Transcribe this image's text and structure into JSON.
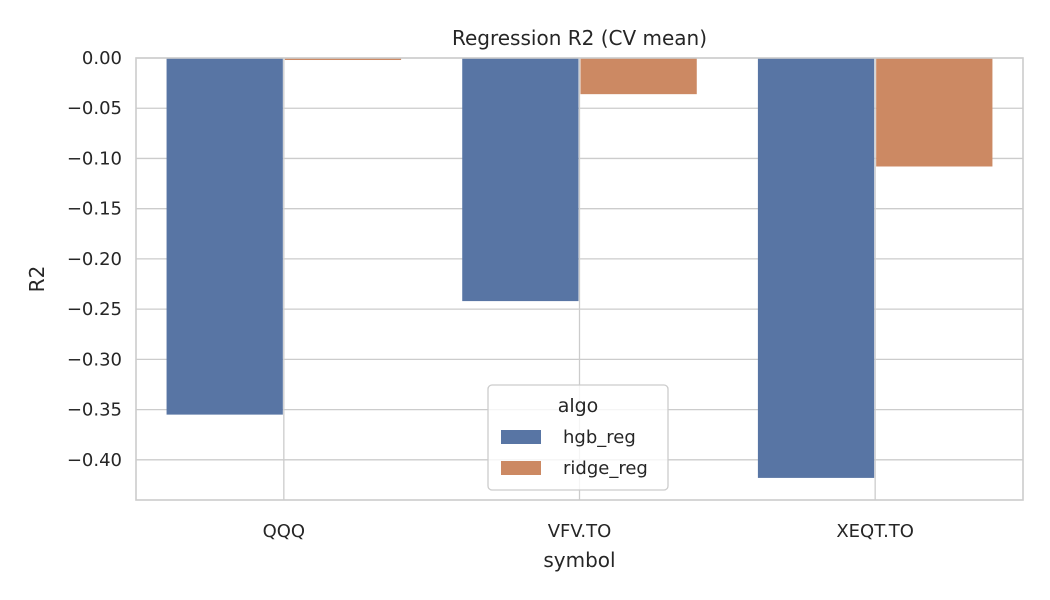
{
  "chart_data": {
    "type": "bar",
    "title": "Regression R2 (CV mean)",
    "xlabel": "symbol",
    "ylabel": "R2",
    "categories": [
      "QQQ",
      "VFV.TO",
      "XEQT.TO"
    ],
    "series": [
      {
        "name": "hgb_reg",
        "color": "#5875a4",
        "values": [
          -0.355,
          -0.242,
          -0.418
        ]
      },
      {
        "name": "ridge_reg",
        "color": "#cc8963",
        "values": [
          -0.002,
          -0.036,
          -0.108
        ]
      }
    ],
    "ylim": [
      -0.44,
      0.0
    ],
    "yticks": [
      0.0,
      -0.05,
      -0.1,
      -0.15,
      -0.2,
      -0.25,
      -0.3,
      -0.35,
      -0.4
    ],
    "ytick_labels": [
      "0.00",
      "−0.05",
      "−0.10",
      "−0.15",
      "−0.20",
      "−0.25",
      "−0.30",
      "−0.35",
      "−0.40"
    ],
    "grid": true,
    "legend": {
      "title": "algo",
      "placement": "lower-center",
      "entries": [
        "hgb_reg",
        "ridge_reg"
      ]
    }
  }
}
